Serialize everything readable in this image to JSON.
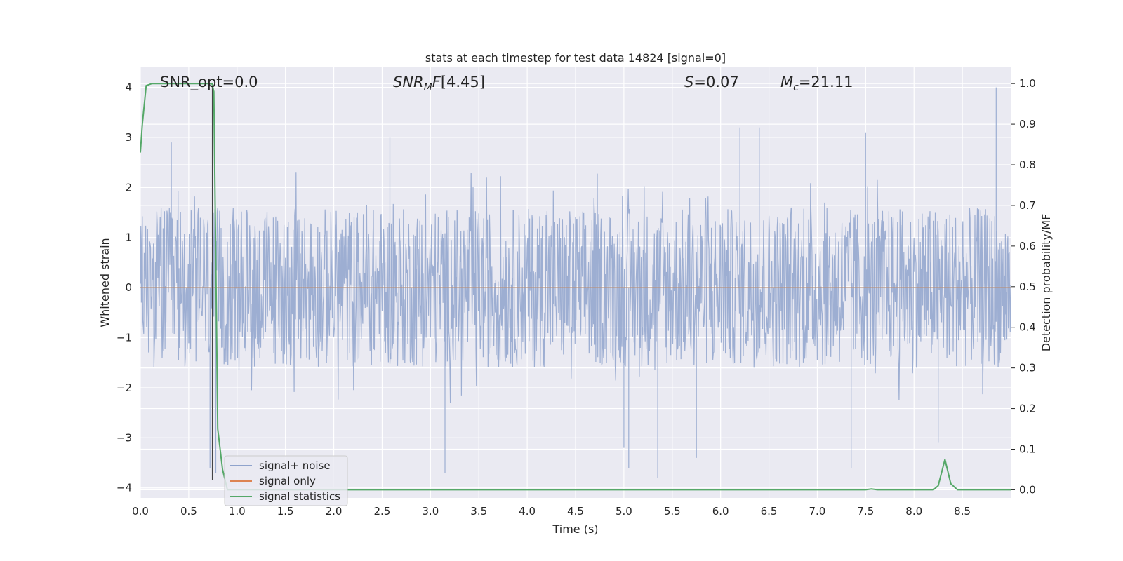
{
  "chart_data": {
    "type": "line",
    "title": "stats at each timestep for test data 14824 [signal=0]",
    "xlabel": "Time (s)",
    "ylabel": "Whitened strain",
    "y2label": "Detection probability/MF",
    "xlim": [
      0,
      9.0
    ],
    "ylim": [
      -4.2,
      4.4
    ],
    "y2lim": [
      -0.02,
      1.04
    ],
    "x_ticks": [
      "0.0",
      "0.5",
      "1.0",
      "1.5",
      "2.0",
      "2.5",
      "3.0",
      "3.5",
      "4.0",
      "4.5",
      "5.0",
      "5.5",
      "6.0",
      "6.5",
      "7.0",
      "7.5",
      "8.0",
      "8.5"
    ],
    "y_ticks": [
      "−4",
      "−3",
      "−2",
      "−1",
      "0",
      "1",
      "2",
      "3",
      "4"
    ],
    "y2_ticks": [
      "0.0",
      "0.1",
      "0.2",
      "0.3",
      "0.4",
      "0.5",
      "0.6",
      "0.7",
      "0.8",
      "0.9",
      "1.0"
    ],
    "grid": true,
    "legend_position": "lower-left",
    "annotations": {
      "snr_opt": "SNR_opt=0.0",
      "snr_mf": "[4.45]",
      "s_value": "=0.07",
      "mc_value": "=21.11"
    },
    "series": [
      {
        "name": "signal+ noise",
        "color": "#8fa3cc",
        "note_kind": "noise",
        "envelope_typical_abs": 1.6,
        "envelope_peak_abs": 4.0,
        "spikes": [
          [
            0.75,
            2.8
          ],
          [
            0.72,
            -3.6
          ],
          [
            0.78,
            -3.7
          ],
          [
            3.15,
            -3.7
          ],
          [
            5.0,
            -3.2
          ],
          [
            5.05,
            -3.6
          ],
          [
            5.35,
            -3.8
          ],
          [
            5.75,
            -3.4
          ],
          [
            6.2,
            3.2
          ],
          [
            6.4,
            3.2
          ],
          [
            7.35,
            -3.6
          ],
          [
            7.5,
            3.1
          ],
          [
            8.25,
            -3.1
          ],
          [
            8.85,
            4.0
          ],
          [
            0.32,
            2.9
          ],
          [
            2.58,
            3.0
          ]
        ]
      },
      {
        "name": "signal only",
        "color": "#dd8452",
        "values_y": 0.0
      },
      {
        "name": "signal statistics",
        "color": "#55a868",
        "axis": "right",
        "x": [
          0.0,
          0.02,
          0.06,
          0.12,
          0.2,
          0.3,
          0.4,
          0.5,
          0.6,
          0.7,
          0.74,
          0.76,
          0.8,
          0.85,
          0.9,
          1.0,
          2.0,
          3.0,
          4.0,
          5.0,
          6.0,
          7.0,
          7.5,
          7.56,
          7.62,
          8.0,
          8.2,
          8.25,
          8.32,
          8.38,
          8.45,
          8.5,
          9.0
        ],
        "y": [
          0.83,
          0.9,
          0.995,
          1.0,
          1.0,
          1.0,
          1.0,
          1.0,
          1.0,
          1.0,
          1.0,
          0.98,
          0.15,
          0.05,
          0.0,
          0.0,
          0.0,
          0.0,
          0.0,
          0.0,
          0.0,
          0.0,
          0.0,
          0.002,
          0.0,
          0.0,
          0.0,
          0.01,
          0.075,
          0.015,
          0.0,
          0.0,
          0.0
        ]
      }
    ],
    "vertical_marker_x": 0.745
  }
}
